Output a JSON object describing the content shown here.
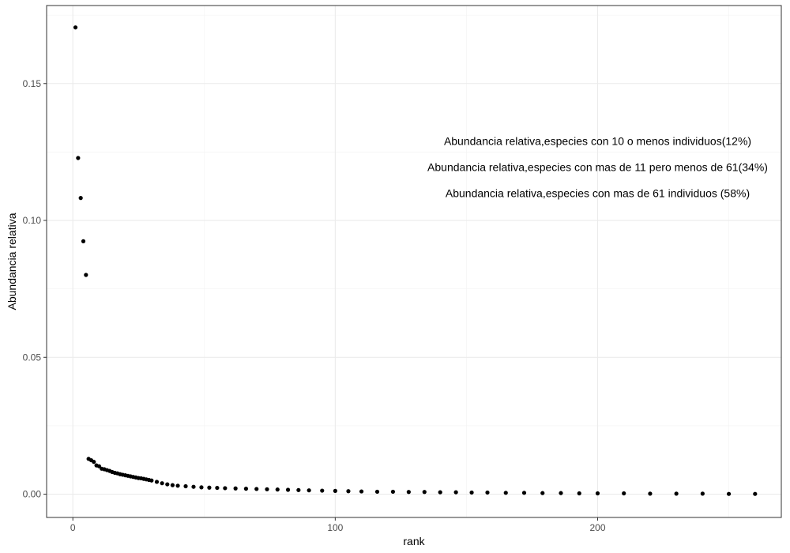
{
  "chart_data": {
    "type": "scatter",
    "xlabel": "rank",
    "ylabel": "Abundancia relativa",
    "xlim": [
      -10,
      270
    ],
    "ylim": [
      -0.0085,
      0.1785
    ],
    "x_ticks": [
      0,
      100,
      200
    ],
    "x_tick_labels": [
      "0",
      "100",
      "200"
    ],
    "y_ticks": [
      0.0,
      0.05,
      0.1,
      0.15
    ],
    "y_tick_labels": [
      "0.00",
      "0.05",
      "0.10",
      "0.15"
    ],
    "grid": true,
    "point_color": "#000000",
    "annotations": [
      {
        "text": "Abundancia relativa,especies con 10 o menos individuos(12%)",
        "x": 200,
        "y": 0.129
      },
      {
        "text": "Abundancia relativa,especies con mas de 11 pero menos de 61(34%)",
        "x": 200,
        "y": 0.1195
      },
      {
        "text": "Abundancia relativa,especies con mas de 61 individuos (58%)",
        "x": 200,
        "y": 0.11
      }
    ],
    "points": {
      "x": [
        1,
        2,
        3,
        4,
        5,
        6,
        7,
        8,
        9,
        10,
        11,
        12,
        13,
        14,
        15,
        16,
        17,
        18,
        19,
        20,
        21,
        22,
        23,
        24,
        25,
        26,
        27,
        28,
        29,
        30,
        32,
        34,
        36,
        38,
        40,
        43,
        46,
        49,
        52,
        55,
        58,
        62,
        66,
        70,
        74,
        78,
        82,
        86,
        90,
        95,
        100,
        105,
        110,
        116,
        122,
        128,
        134,
        140,
        146,
        152,
        158,
        165,
        172,
        179,
        186,
        193,
        200,
        210,
        220,
        230,
        240,
        250,
        260
      ],
      "y": [
        0.1705,
        0.1228,
        0.1082,
        0.0924,
        0.0801,
        0.0129,
        0.0124,
        0.0118,
        0.0105,
        0.0102,
        0.0093,
        0.0091,
        0.0088,
        0.0085,
        0.0081,
        0.0078,
        0.0076,
        0.0073,
        0.0071,
        0.0069,
        0.0067,
        0.0065,
        0.0063,
        0.0061,
        0.0059,
        0.0058,
        0.0056,
        0.0054,
        0.0052,
        0.005,
        0.0045,
        0.004,
        0.0036,
        0.0033,
        0.0031,
        0.0029,
        0.0027,
        0.0025,
        0.0024,
        0.0023,
        0.0022,
        0.0021,
        0.002,
        0.0019,
        0.0018,
        0.0017,
        0.0016,
        0.0015,
        0.0014,
        0.0013,
        0.0012,
        0.0011,
        0.001,
        0.0009,
        0.0009,
        0.0008,
        0.0008,
        0.0007,
        0.0007,
        0.0006,
        0.0006,
        0.0005,
        0.0005,
        0.0004,
        0.0004,
        0.0003,
        0.0003,
        0.0003,
        0.0002,
        0.0002,
        0.0002,
        0.0001,
        0.0001
      ]
    }
  }
}
